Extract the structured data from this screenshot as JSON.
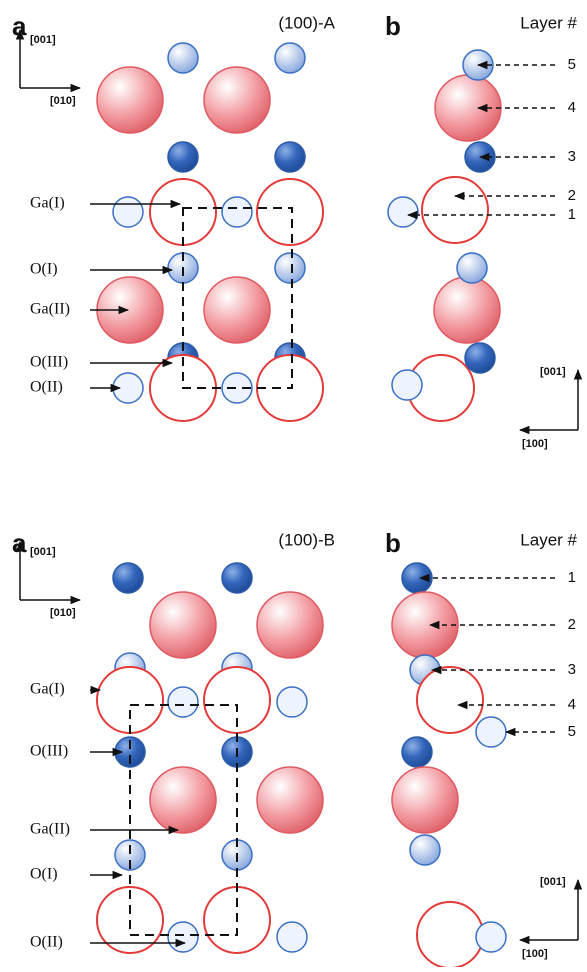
{
  "panels": [
    {
      "panel_a": {
        "letter": "a",
        "title": "(100)-A",
        "axis_up": "[001]",
        "axis_right": "[010]",
        "labels": [
          "Ga(I)",
          "O(I)",
          "Ga(II)",
          "O(III)",
          "O(II)"
        ]
      },
      "panel_b": {
        "letter": "b",
        "header": "Layer #",
        "layers": [
          5,
          4,
          3,
          2,
          1
        ],
        "axis_up": "[001]",
        "axis_left": "[100]"
      }
    },
    {
      "panel_a": {
        "letter": "a",
        "title": "(100)-B",
        "axis_up": "[001]",
        "axis_right": "[010]",
        "labels": [
          "Ga(I)",
          "O(III)",
          "Ga(II)",
          "O(I)",
          "O(II)"
        ]
      },
      "panel_b": {
        "letter": "b",
        "header": "Layer #",
        "layers": [
          1,
          2,
          3,
          4,
          5
        ],
        "axis_up": "[001]",
        "axis_left": "[100]"
      }
    }
  ]
}
